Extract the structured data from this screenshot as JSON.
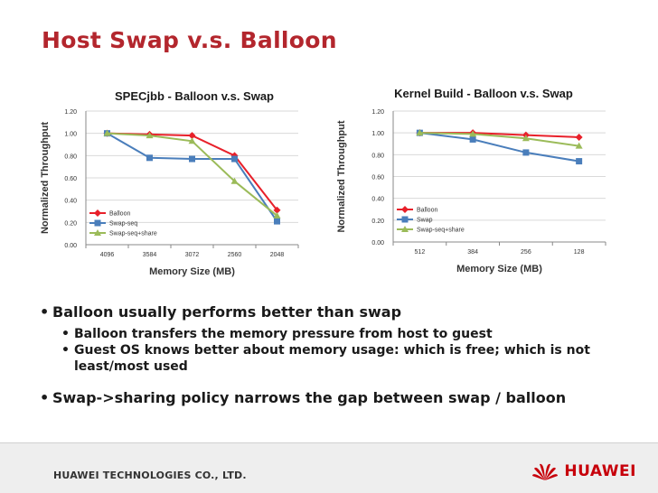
{
  "slide": {
    "title": "Host Swap v.s. Balloon"
  },
  "chart_data": [
    {
      "type": "line",
      "title": "SPECjbb - Balloon v.s. Swap",
      "xlabel": "Memory Size (MB)",
      "ylabel": "Normalized Throughput",
      "categories": [
        "4096",
        "3584",
        "3072",
        "2560",
        "2048"
      ],
      "ylim": [
        0,
        1.2
      ],
      "yticks": [
        "0.00",
        "0.20",
        "0.40",
        "0.60",
        "0.80",
        "1.00",
        "1.20"
      ],
      "grid": true,
      "legend": "bottom-left",
      "series": [
        {
          "name": "Balloon",
          "color": "#e8202a",
          "marker": "diamond",
          "values": [
            1.0,
            0.99,
            0.98,
            0.8,
            0.31
          ]
        },
        {
          "name": "Swap-seq",
          "color": "#4a7ebb",
          "marker": "square",
          "values": [
            1.0,
            0.78,
            0.77,
            0.77,
            0.21
          ]
        },
        {
          "name": "Swap-seq+share",
          "color": "#9bbb59",
          "marker": "triangle",
          "values": [
            1.0,
            0.98,
            0.93,
            0.57,
            0.26
          ]
        }
      ]
    },
    {
      "type": "line",
      "title": "Kernel Build - Balloon v.s. Swap",
      "xlabel": "Memory Size (MB)",
      "ylabel": "Normalized Throughput",
      "categories": [
        "512",
        "384",
        "256",
        "128"
      ],
      "ylim": [
        0,
        1.2
      ],
      "yticks": [
        "0.00",
        "0.20",
        "0.40",
        "0.60",
        "0.80",
        "1.00",
        "1.20"
      ],
      "grid": true,
      "legend": "bottom-left",
      "series": [
        {
          "name": "Balloon",
          "color": "#e8202a",
          "marker": "diamond",
          "values": [
            1.0,
            1.0,
            0.98,
            0.96
          ]
        },
        {
          "name": "Swap",
          "color": "#4a7ebb",
          "marker": "square",
          "values": [
            1.0,
            0.94,
            0.82,
            0.74
          ]
        },
        {
          "name": "Swap-seq+share",
          "color": "#9bbb59",
          "marker": "triangle",
          "values": [
            1.0,
            0.99,
            0.95,
            0.88
          ]
        }
      ]
    }
  ],
  "bullets": {
    "b1": "Balloon usually performs better than swap",
    "b1a": "Balloon transfers the memory pressure from host to guest",
    "b1b": "Guest OS knows better about memory usage: which is free; which is not least/most used",
    "b2": "Swap->sharing policy narrows the gap between swap / balloon"
  },
  "footer": {
    "company": "HUAWEI TECHNOLOGIES CO., LTD.",
    "brand": "HUAWEI"
  }
}
